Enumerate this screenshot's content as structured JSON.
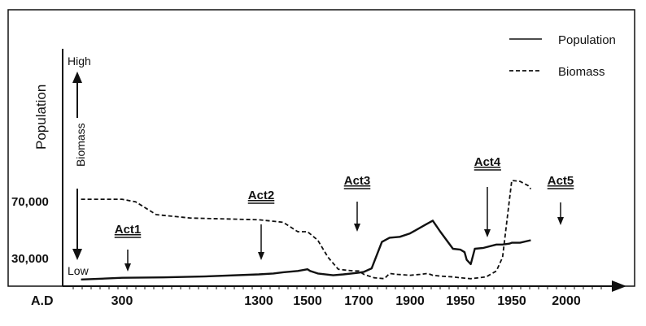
{
  "chart_data": {
    "type": "line",
    "title": "",
    "xlabel": "A.D",
    "ylabel": "Population",
    "secondary_ylabel": "Biomass",
    "y_high_label": "High",
    "y_low_label": "Low",
    "y_tick_labels": [
      "70,000",
      "30,000"
    ],
    "x_tick_labels": [
      "300",
      "1300",
      "1500",
      "1700",
      "1900",
      "1950",
      "1950",
      "2000"
    ],
    "legend": {
      "placement": "top-right",
      "entries": [
        "Population",
        "Biomass"
      ]
    },
    "acts": [
      {
        "label": "Act1",
        "x": 300
      },
      {
        "label": "Act2",
        "x": 1300
      },
      {
        "label": "Act3",
        "x": 1650
      },
      {
        "label": "Act4",
        "x": 1950
      },
      {
        "label": "Act5",
        "x": 2000
      }
    ],
    "series": [
      {
        "name": "Population",
        "style": "solid",
        "points": [
          [
            -0.6,
            4
          ],
          [
            -0.3,
            5
          ],
          [
            0.0,
            6
          ],
          [
            0.3,
            6.5
          ],
          [
            0.6,
            7.5
          ],
          [
            1.0,
            10
          ],
          [
            1.3,
            11
          ],
          [
            1.5,
            12.5
          ],
          [
            1.8,
            14
          ],
          [
            2.0,
            16
          ],
          [
            2.05,
            14
          ],
          [
            2.2,
            11
          ],
          [
            2.5,
            9
          ],
          [
            2.7,
            10
          ],
          [
            3.0,
            12
          ],
          [
            3.1,
            13
          ],
          [
            3.25,
            17
          ],
          [
            3.45,
            48
          ],
          [
            3.6,
            53
          ],
          [
            3.8,
            54
          ],
          [
            4.0,
            58
          ],
          [
            4.3,
            68
          ],
          [
            4.45,
            73
          ],
          [
            4.6,
            60
          ],
          [
            4.85,
            40
          ],
          [
            5.0,
            39
          ],
          [
            5.08,
            36
          ],
          [
            5.12,
            27
          ],
          [
            5.2,
            22
          ],
          [
            5.28,
            40
          ],
          [
            5.45,
            41
          ],
          [
            5.7,
            45
          ],
          [
            5.82,
            45
          ],
          [
            5.95,
            46
          ],
          [
            6.0,
            47
          ],
          [
            6.15,
            47
          ],
          [
            6.35,
            50
          ]
        ]
      },
      {
        "name": "Biomass",
        "style": "dashed",
        "points": [
          [
            -0.6,
            98
          ],
          [
            -0.3,
            98
          ],
          [
            0.0,
            98
          ],
          [
            0.1,
            95
          ],
          [
            0.25,
            80
          ],
          [
            0.5,
            76
          ],
          [
            1.0,
            74
          ],
          [
            1.5,
            71
          ],
          [
            1.8,
            60
          ],
          [
            2.0,
            60
          ],
          [
            2.2,
            50
          ],
          [
            2.4,
            30
          ],
          [
            2.6,
            16
          ],
          [
            2.75,
            15
          ],
          [
            2.9,
            14
          ],
          [
            3.0,
            14
          ],
          [
            3.1,
            10
          ],
          [
            3.3,
            6
          ],
          [
            3.5,
            5
          ],
          [
            3.6,
            11
          ],
          [
            3.75,
            10
          ],
          [
            4.0,
            9
          ],
          [
            4.2,
            10
          ],
          [
            4.35,
            11
          ],
          [
            4.45,
            9
          ],
          [
            4.6,
            8
          ],
          [
            4.85,
            7
          ],
          [
            5.0,
            6
          ],
          [
            5.2,
            5
          ],
          [
            5.5,
            7
          ],
          [
            5.7,
            14
          ],
          [
            5.82,
            30
          ],
          [
            5.9,
            70
          ],
          [
            6.0,
            120
          ],
          [
            6.15,
            119
          ],
          [
            6.3,
            114
          ],
          [
            6.35,
            110
          ]
        ]
      }
    ]
  }
}
